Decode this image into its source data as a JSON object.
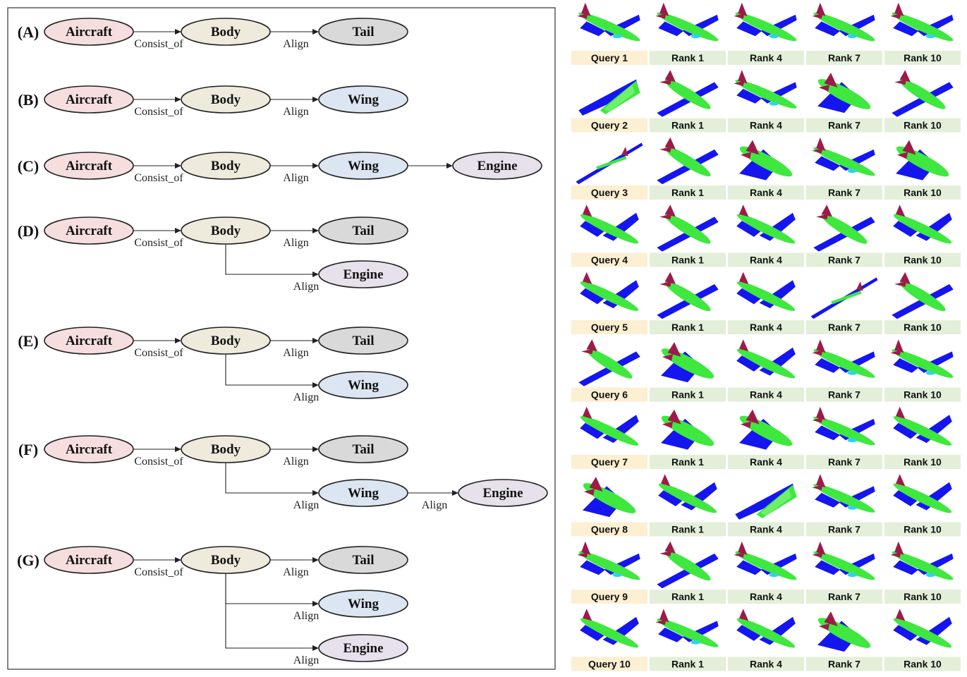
{
  "colors": {
    "aircraft": "#f6dede",
    "body": "#eeeadc",
    "tail": "#d9d9d9",
    "wing": "#dce6f2",
    "engine": "#e7e1ec",
    "query_caption": "#fcefd2",
    "rank_caption": "#e3efd9",
    "plane_body": "#3ee83e",
    "plane_wing": "#1515f0",
    "plane_tail": "#9e1a4a",
    "plane_engine": "#2ad6e6"
  },
  "diagram": {
    "rows": [
      {
        "id": "(A)",
        "nodes": [
          {
            "key": "a",
            "label": "Aircraft",
            "type": "aircraft"
          },
          {
            "key": "b",
            "label": "Body",
            "type": "body"
          },
          {
            "key": "t",
            "label": "Tail",
            "type": "tail"
          }
        ],
        "edges": [
          {
            "from": "a",
            "to": "b",
            "label": "Consist_of"
          },
          {
            "from": "b",
            "to": "t",
            "label": "Align"
          }
        ]
      },
      {
        "id": "(B)",
        "nodes": [
          {
            "key": "a",
            "label": "Aircraft",
            "type": "aircraft"
          },
          {
            "key": "b",
            "label": "Body",
            "type": "body"
          },
          {
            "key": "w",
            "label": "Wing",
            "type": "wing"
          }
        ],
        "edges": [
          {
            "from": "a",
            "to": "b",
            "label": "Consist_of"
          },
          {
            "from": "b",
            "to": "w",
            "label": "Align"
          }
        ]
      },
      {
        "id": "(C)",
        "nodes": [
          {
            "key": "a",
            "label": "Aircraft",
            "type": "aircraft"
          },
          {
            "key": "b",
            "label": "Body",
            "type": "body"
          },
          {
            "key": "w",
            "label": "Wing",
            "type": "wing"
          },
          {
            "key": "e",
            "label": "Engine",
            "type": "engine"
          }
        ],
        "edges": [
          {
            "from": "a",
            "to": "b",
            "label": "Consist_of"
          },
          {
            "from": "b",
            "to": "w",
            "label": "Align"
          },
          {
            "from": "w",
            "to": "e",
            "label": ""
          }
        ]
      },
      {
        "id": "(D)",
        "nodes": [
          {
            "key": "a",
            "label": "Aircraft",
            "type": "aircraft"
          },
          {
            "key": "b",
            "label": "Body",
            "type": "body"
          },
          {
            "key": "t",
            "label": "Tail",
            "type": "tail"
          },
          {
            "key": "e",
            "label": "Engine",
            "type": "engine"
          }
        ],
        "edges": [
          {
            "from": "a",
            "to": "b",
            "label": "Consist_of"
          },
          {
            "from": "b",
            "to": "t",
            "label": "Align"
          },
          {
            "from": "b",
            "to": "e",
            "label": "Align"
          }
        ]
      },
      {
        "id": "(E)",
        "nodes": [
          {
            "key": "a",
            "label": "Aircraft",
            "type": "aircraft"
          },
          {
            "key": "b",
            "label": "Body",
            "type": "body"
          },
          {
            "key": "t",
            "label": "Tail",
            "type": "tail"
          },
          {
            "key": "w",
            "label": "Wing",
            "type": "wing"
          }
        ],
        "edges": [
          {
            "from": "a",
            "to": "b",
            "label": "Consist_of"
          },
          {
            "from": "b",
            "to": "t",
            "label": "Align"
          },
          {
            "from": "b",
            "to": "w",
            "label": "Align"
          }
        ]
      },
      {
        "id": "(F)",
        "nodes": [
          {
            "key": "a",
            "label": "Aircraft",
            "type": "aircraft"
          },
          {
            "key": "b",
            "label": "Body",
            "type": "body"
          },
          {
            "key": "t",
            "label": "Tail",
            "type": "tail"
          },
          {
            "key": "w",
            "label": "Wing",
            "type": "wing"
          },
          {
            "key": "e",
            "label": "Engine",
            "type": "engine"
          }
        ],
        "edges": [
          {
            "from": "a",
            "to": "b",
            "label": "Consist_of"
          },
          {
            "from": "b",
            "to": "t",
            "label": "Align"
          },
          {
            "from": "b",
            "to": "w",
            "label": "Align"
          },
          {
            "from": "w",
            "to": "e",
            "label": "Align"
          }
        ]
      },
      {
        "id": "(G)",
        "nodes": [
          {
            "key": "a",
            "label": "Aircraft",
            "type": "aircraft"
          },
          {
            "key": "b",
            "label": "Body",
            "type": "body"
          },
          {
            "key": "t",
            "label": "Tail",
            "type": "tail"
          },
          {
            "key": "w",
            "label": "Wing",
            "type": "wing"
          },
          {
            "key": "e",
            "label": "Engine",
            "type": "engine"
          }
        ],
        "edges": [
          {
            "from": "a",
            "to": "b",
            "label": "Consist_of"
          },
          {
            "from": "b",
            "to": "t",
            "label": "Align"
          },
          {
            "from": "b",
            "to": "w",
            "label": "Align"
          },
          {
            "from": "b",
            "to": "e",
            "label": "Align"
          }
        ]
      }
    ]
  },
  "results": {
    "column_labels": [
      "Rank 1",
      "Rank 4",
      "Rank 7",
      "Rank 10"
    ],
    "queries": [
      {
        "label": "Query 1",
        "thumbs": [
          "airliner",
          "airliner",
          "airliner",
          "airliner",
          "airliner"
        ]
      },
      {
        "label": "Query 2",
        "thumbs": [
          "delta",
          "prop",
          "airliner",
          "fighter",
          "prop"
        ]
      },
      {
        "label": "Query 3",
        "thumbs": [
          "glider",
          "prop",
          "fighter",
          "airliner",
          "fighter"
        ]
      },
      {
        "label": "Query 4",
        "thumbs": [
          "jet",
          "prop",
          "jet",
          "prop",
          "jet"
        ]
      },
      {
        "label": "Query 5",
        "thumbs": [
          "jet",
          "prop",
          "jet",
          "glider",
          "prop"
        ]
      },
      {
        "label": "Query 6",
        "thumbs": [
          "prop",
          "fighter",
          "jet",
          "airliner",
          "airliner"
        ]
      },
      {
        "label": "Query 7",
        "thumbs": [
          "jet",
          "fighter",
          "fighter",
          "airliner",
          "jet"
        ]
      },
      {
        "label": "Query 8",
        "thumbs": [
          "fighter",
          "jet",
          "delta",
          "airliner",
          "jet"
        ]
      },
      {
        "label": "Query 9",
        "thumbs": [
          "airliner",
          "prop",
          "airliner",
          "airliner",
          "airliner"
        ]
      },
      {
        "label": "Query 10",
        "thumbs": [
          "jet",
          "airliner",
          "jet",
          "fighter",
          "jet"
        ]
      }
    ]
  }
}
